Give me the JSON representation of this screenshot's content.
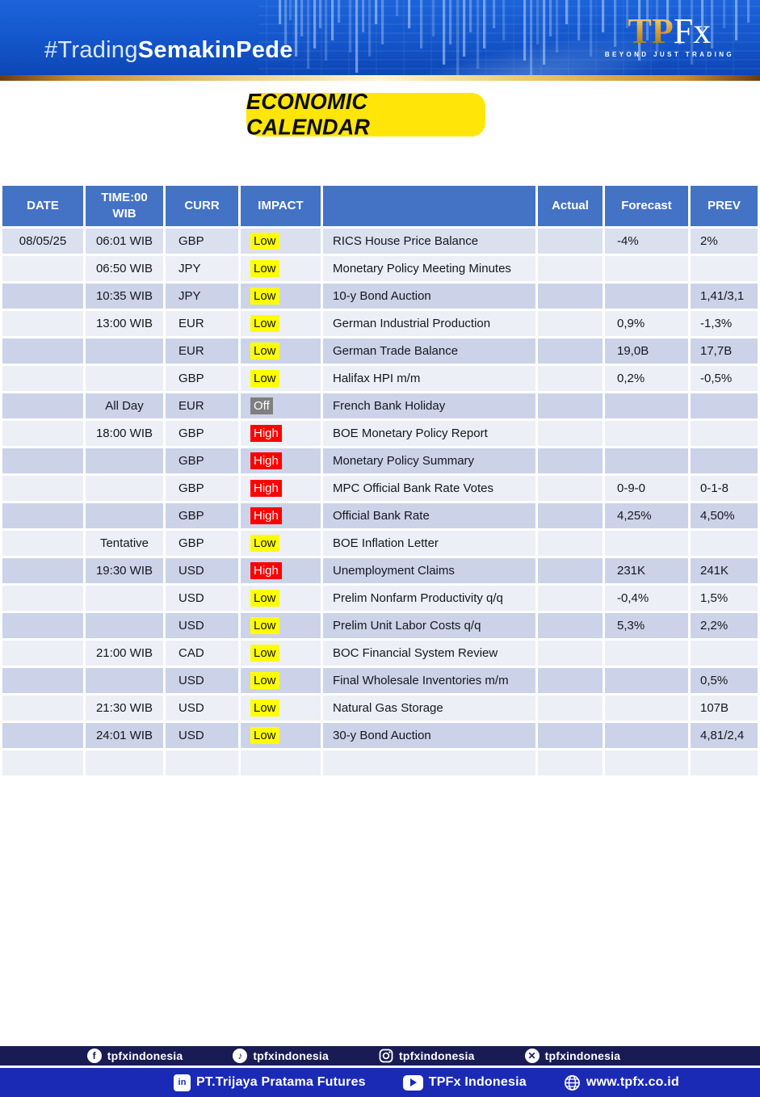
{
  "banner": {
    "hashtag_light": "#Trading",
    "hashtag_bold": "SemakinPede",
    "logo_tp": "TP",
    "logo_fx": "Fx",
    "logo_tagline": "BEYOND JUST TRADING"
  },
  "title": "ECONOMIC CALENDAR",
  "table": {
    "columns": [
      "DATE",
      "TIME:00\nWIB",
      "CURR",
      "IMPACT",
      "",
      "Actual",
      "Forecast",
      "PREV"
    ],
    "rows": [
      [
        "08/05/25",
        "06:01 WIB",
        "GBP",
        "Low",
        "RICS House Price Balance",
        "",
        "-4%",
        "2%"
      ],
      [
        "",
        "06:50 WIB",
        "JPY",
        "Low",
        "Monetary Policy Meeting Minutes",
        "",
        "",
        ""
      ],
      [
        "",
        "10:35 WIB",
        "JPY",
        "Low",
        "10-y Bond Auction",
        "",
        "",
        "1,41/3,1"
      ],
      [
        "",
        "13:00 WIB",
        "EUR",
        "Low",
        "German Industrial Production",
        "",
        "0,9%",
        "-1,3%"
      ],
      [
        "",
        "",
        "EUR",
        "Low",
        "German Trade Balance",
        "",
        "19,0B",
        "17,7B"
      ],
      [
        "",
        "",
        "GBP",
        "Low",
        "Halifax HPI m/m",
        "",
        "0,2%",
        "-0,5%"
      ],
      [
        "",
        "All Day",
        "EUR",
        "Off",
        "French Bank Holiday",
        "",
        "",
        ""
      ],
      [
        "",
        "18:00 WIB",
        "GBP",
        "High",
        "BOE Monetary Policy Report",
        "",
        "",
        ""
      ],
      [
        "",
        "",
        "GBP",
        "High",
        "Monetary Policy Summary",
        "",
        "",
        ""
      ],
      [
        "",
        "",
        "GBP",
        "High",
        "MPC Official Bank Rate Votes",
        "",
        "0-9-0",
        "0-1-8"
      ],
      [
        "",
        "",
        "GBP",
        "High",
        "Official Bank Rate",
        "",
        "4,25%",
        "4,50%"
      ],
      [
        "",
        "Tentative",
        "GBP",
        "Low",
        "BOE Inflation Letter",
        "",
        "",
        ""
      ],
      [
        "",
        "19:30 WIB",
        "USD",
        "High",
        "Unemployment Claims",
        "",
        "231K",
        "241K"
      ],
      [
        "",
        "",
        "USD",
        "Low",
        "Prelim Nonfarm Productivity q/q",
        "",
        "-0,4%",
        "1,5%"
      ],
      [
        "",
        "",
        "USD",
        "Low",
        "Prelim Unit Labor Costs q/q",
        "",
        "5,3%",
        "2,2%"
      ],
      [
        "",
        "21:00 WIB",
        "CAD",
        "Low",
        "BOC Financial System Review",
        "",
        "",
        ""
      ],
      [
        "",
        "",
        "USD",
        "Low",
        "Final Wholesale Inventories m/m",
        "",
        "",
        "0,5%"
      ],
      [
        "",
        "21:30 WIB",
        "USD",
        "Low",
        "Natural Gas Storage",
        "",
        "",
        "107B"
      ],
      [
        "",
        "24:01 WIB",
        "USD",
        "Low",
        "30-y Bond Auction",
        "",
        "",
        "4,81/2,4"
      ],
      [
        "",
        "",
        "",
        "",
        "",
        "",
        "",
        ""
      ]
    ]
  },
  "colors": {
    "table_header": "#4472c4",
    "band_dark": "#ccd3e8",
    "band_light": "#edeff7",
    "impact_low": "#ffff00",
    "impact_high": "#ff0000",
    "impact_off": "#7f7f7f",
    "title_badge": "#ffe608",
    "banner_blue": "#1557cd",
    "footer_navy": "#191b55",
    "footer_blue": "#1b2ab5",
    "gold": "#c88d2e"
  },
  "footer": {
    "social": [
      {
        "icon": "facebook",
        "label": "tpfxindonesia"
      },
      {
        "icon": "tiktok",
        "label": "tpfxindonesia"
      },
      {
        "icon": "instagram",
        "label": "tpfxindonesia"
      },
      {
        "icon": "x",
        "label": "tpfxindonesia"
      }
    ],
    "info": [
      {
        "icon": "linkedin",
        "label": "PT.Trijaya Pratama Futures"
      },
      {
        "icon": "youtube",
        "label": "TPFx Indonesia"
      },
      {
        "icon": "globe",
        "label": "www.tpfx.co.id"
      }
    ]
  }
}
